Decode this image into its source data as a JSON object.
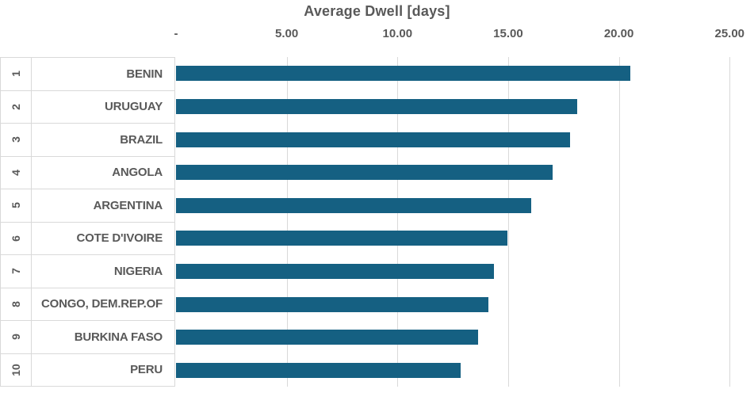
{
  "chart_data": {
    "type": "bar",
    "orientation": "horizontal",
    "title": "Average Dwell [days]",
    "xlabel": "",
    "ylabel": "",
    "grid": true,
    "legend": false,
    "xlim": [
      0,
      26.1
    ],
    "x_ticks": [
      {
        "label": "-",
        "value": 0
      },
      {
        "label": "5.00",
        "value": 5
      },
      {
        "label": "10.00",
        "value": 10
      },
      {
        "label": "15.00",
        "value": 15
      },
      {
        "label": "20.00",
        "value": 20
      },
      {
        "label": "25.00",
        "value": 25
      }
    ],
    "ranks": [
      "1",
      "2",
      "3",
      "4",
      "5",
      "6",
      "7",
      "8",
      "9",
      "10"
    ],
    "categories": [
      "BENIN",
      "URUGUAY",
      "BRAZIL",
      "ANGOLA",
      "ARGENTINA",
      "COTE D'IVOIRE",
      "NIGERIA",
      "CONGO, DEM.REP.OF",
      "BURKINA FASO",
      "PERU"
    ],
    "values": [
      20.5,
      18.1,
      17.8,
      17.0,
      16.05,
      14.95,
      14.35,
      14.1,
      13.65,
      12.85
    ],
    "colors": {
      "bar": "#156082",
      "gridline": "#D9D9D9",
      "text": "#595959",
      "table_border": "#D9D9D9",
      "background": "#FFFFFF"
    }
  }
}
